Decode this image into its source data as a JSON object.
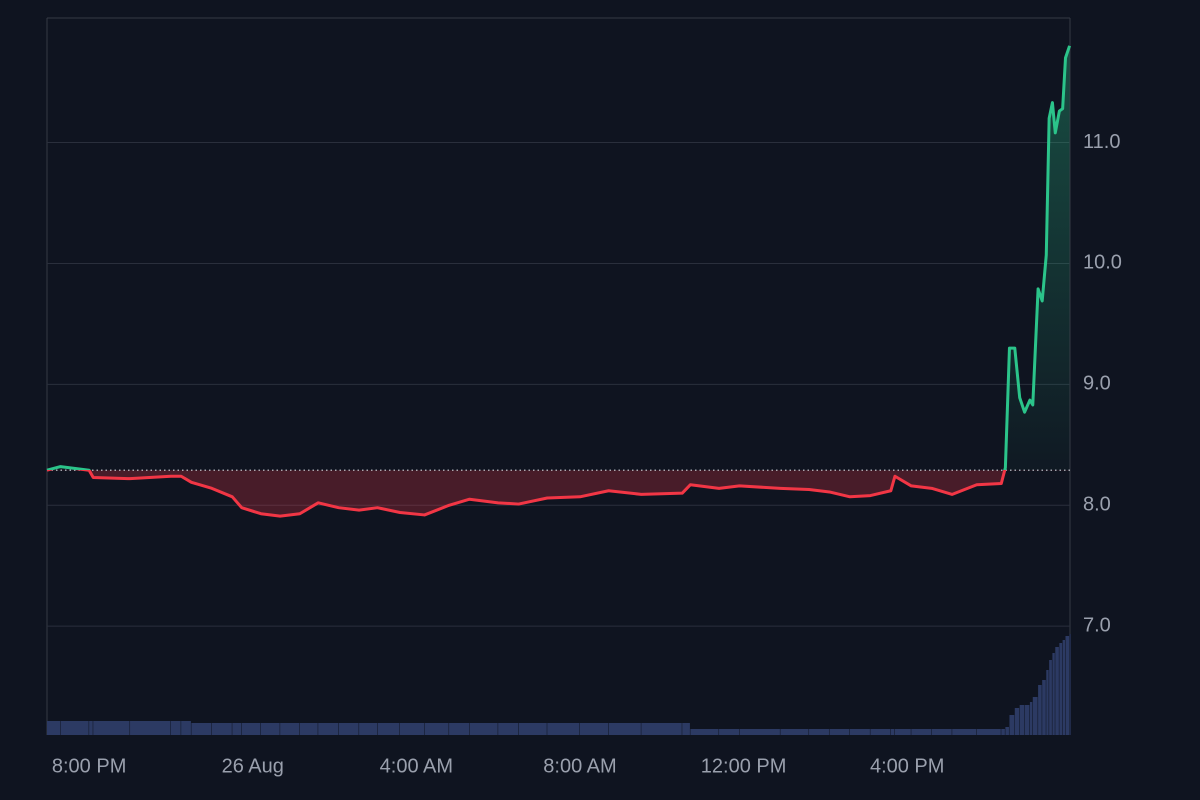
{
  "chart_data": {
    "type": "baseline",
    "x": [
      -5.03,
      -4.7,
      -4,
      -3.9,
      -3,
      -2,
      -1.75,
      -1.5,
      -1,
      -0.5,
      -0.27,
      0.2,
      0.67,
      1.15,
      1.6,
      2.1,
      2.6,
      3.05,
      3.6,
      4.2,
      4.8,
      5.3,
      6.0,
      6.5,
      7.2,
      8.0,
      8.7,
      9.5,
      10.5,
      10.7,
      11.4,
      11.9,
      12.9,
      13.6,
      14.1,
      14.6,
      15.1,
      15.6,
      15.7,
      16.1,
      16.6,
      17.1,
      17.7,
      18.3,
      18.4,
      18.5,
      18.63,
      18.75,
      18.87,
      19.0,
      19.07,
      19.2,
      19.3,
      19.4,
      19.47,
      19.55,
      19.62,
      19.72,
      19.8,
      19.87,
      19.97
    ],
    "values": [
      8.29,
      8.32,
      8.29,
      8.23,
      8.22,
      8.24,
      8.24,
      8.19,
      8.14,
      8.07,
      7.98,
      7.93,
      7.91,
      7.93,
      8.02,
      7.98,
      7.96,
      7.98,
      7.94,
      7.92,
      8.0,
      8.05,
      8.02,
      8.01,
      8.06,
      8.07,
      8.12,
      8.09,
      8.1,
      8.17,
      8.14,
      8.16,
      8.14,
      8.13,
      8.11,
      8.07,
      8.08,
      8.12,
      8.24,
      8.16,
      8.14,
      8.09,
      8.17,
      8.18,
      8.31,
      9.3,
      9.3,
      8.89,
      8.77,
      8.87,
      8.83,
      9.79,
      9.69,
      10.07,
      11.2,
      11.33,
      11.08,
      11.26,
      11.28,
      11.7,
      11.8
    ],
    "volume": [
      14,
      14,
      14,
      14,
      14,
      14,
      14,
      12,
      12,
      12,
      12,
      12,
      12,
      12,
      12,
      12,
      12,
      12,
      12,
      12,
      12,
      12,
      12,
      12,
      12,
      12,
      12,
      12,
      12,
      6,
      6,
      6,
      6,
      6,
      6,
      6,
      6,
      6,
      6,
      6,
      6,
      6,
      6,
      6,
      8,
      20,
      27,
      30,
      30,
      33,
      38,
      50,
      55,
      65,
      75,
      82,
      88,
      92,
      95,
      99,
      101
    ],
    "baseline": 8.29,
    "up_color": "#2bc48a",
    "down_color": "#f23645",
    "volume_color": "#2c3a63",
    "xlim": [
      -5.03,
      19.98
    ],
    "xticks": [
      {
        "value": -4,
        "label": "8:00 PM"
      },
      {
        "value": 0,
        "label": "26 Aug"
      },
      {
        "value": 4,
        "label": "4:00 AM"
      },
      {
        "value": 8,
        "label": "8:00 AM"
      },
      {
        "value": 12,
        "label": "12:00 PM"
      },
      {
        "value": 16,
        "label": "4:00 PM"
      }
    ],
    "ylim": [
      6.1,
      12.03
    ],
    "yticks": [
      {
        "value": 7,
        "label": "7.0"
      },
      {
        "value": 8,
        "label": "8.0"
      },
      {
        "value": 9,
        "label": "9.0"
      },
      {
        "value": 10,
        "label": "10.0"
      },
      {
        "value": 11,
        "label": "11.0"
      }
    ],
    "grid": true
  }
}
